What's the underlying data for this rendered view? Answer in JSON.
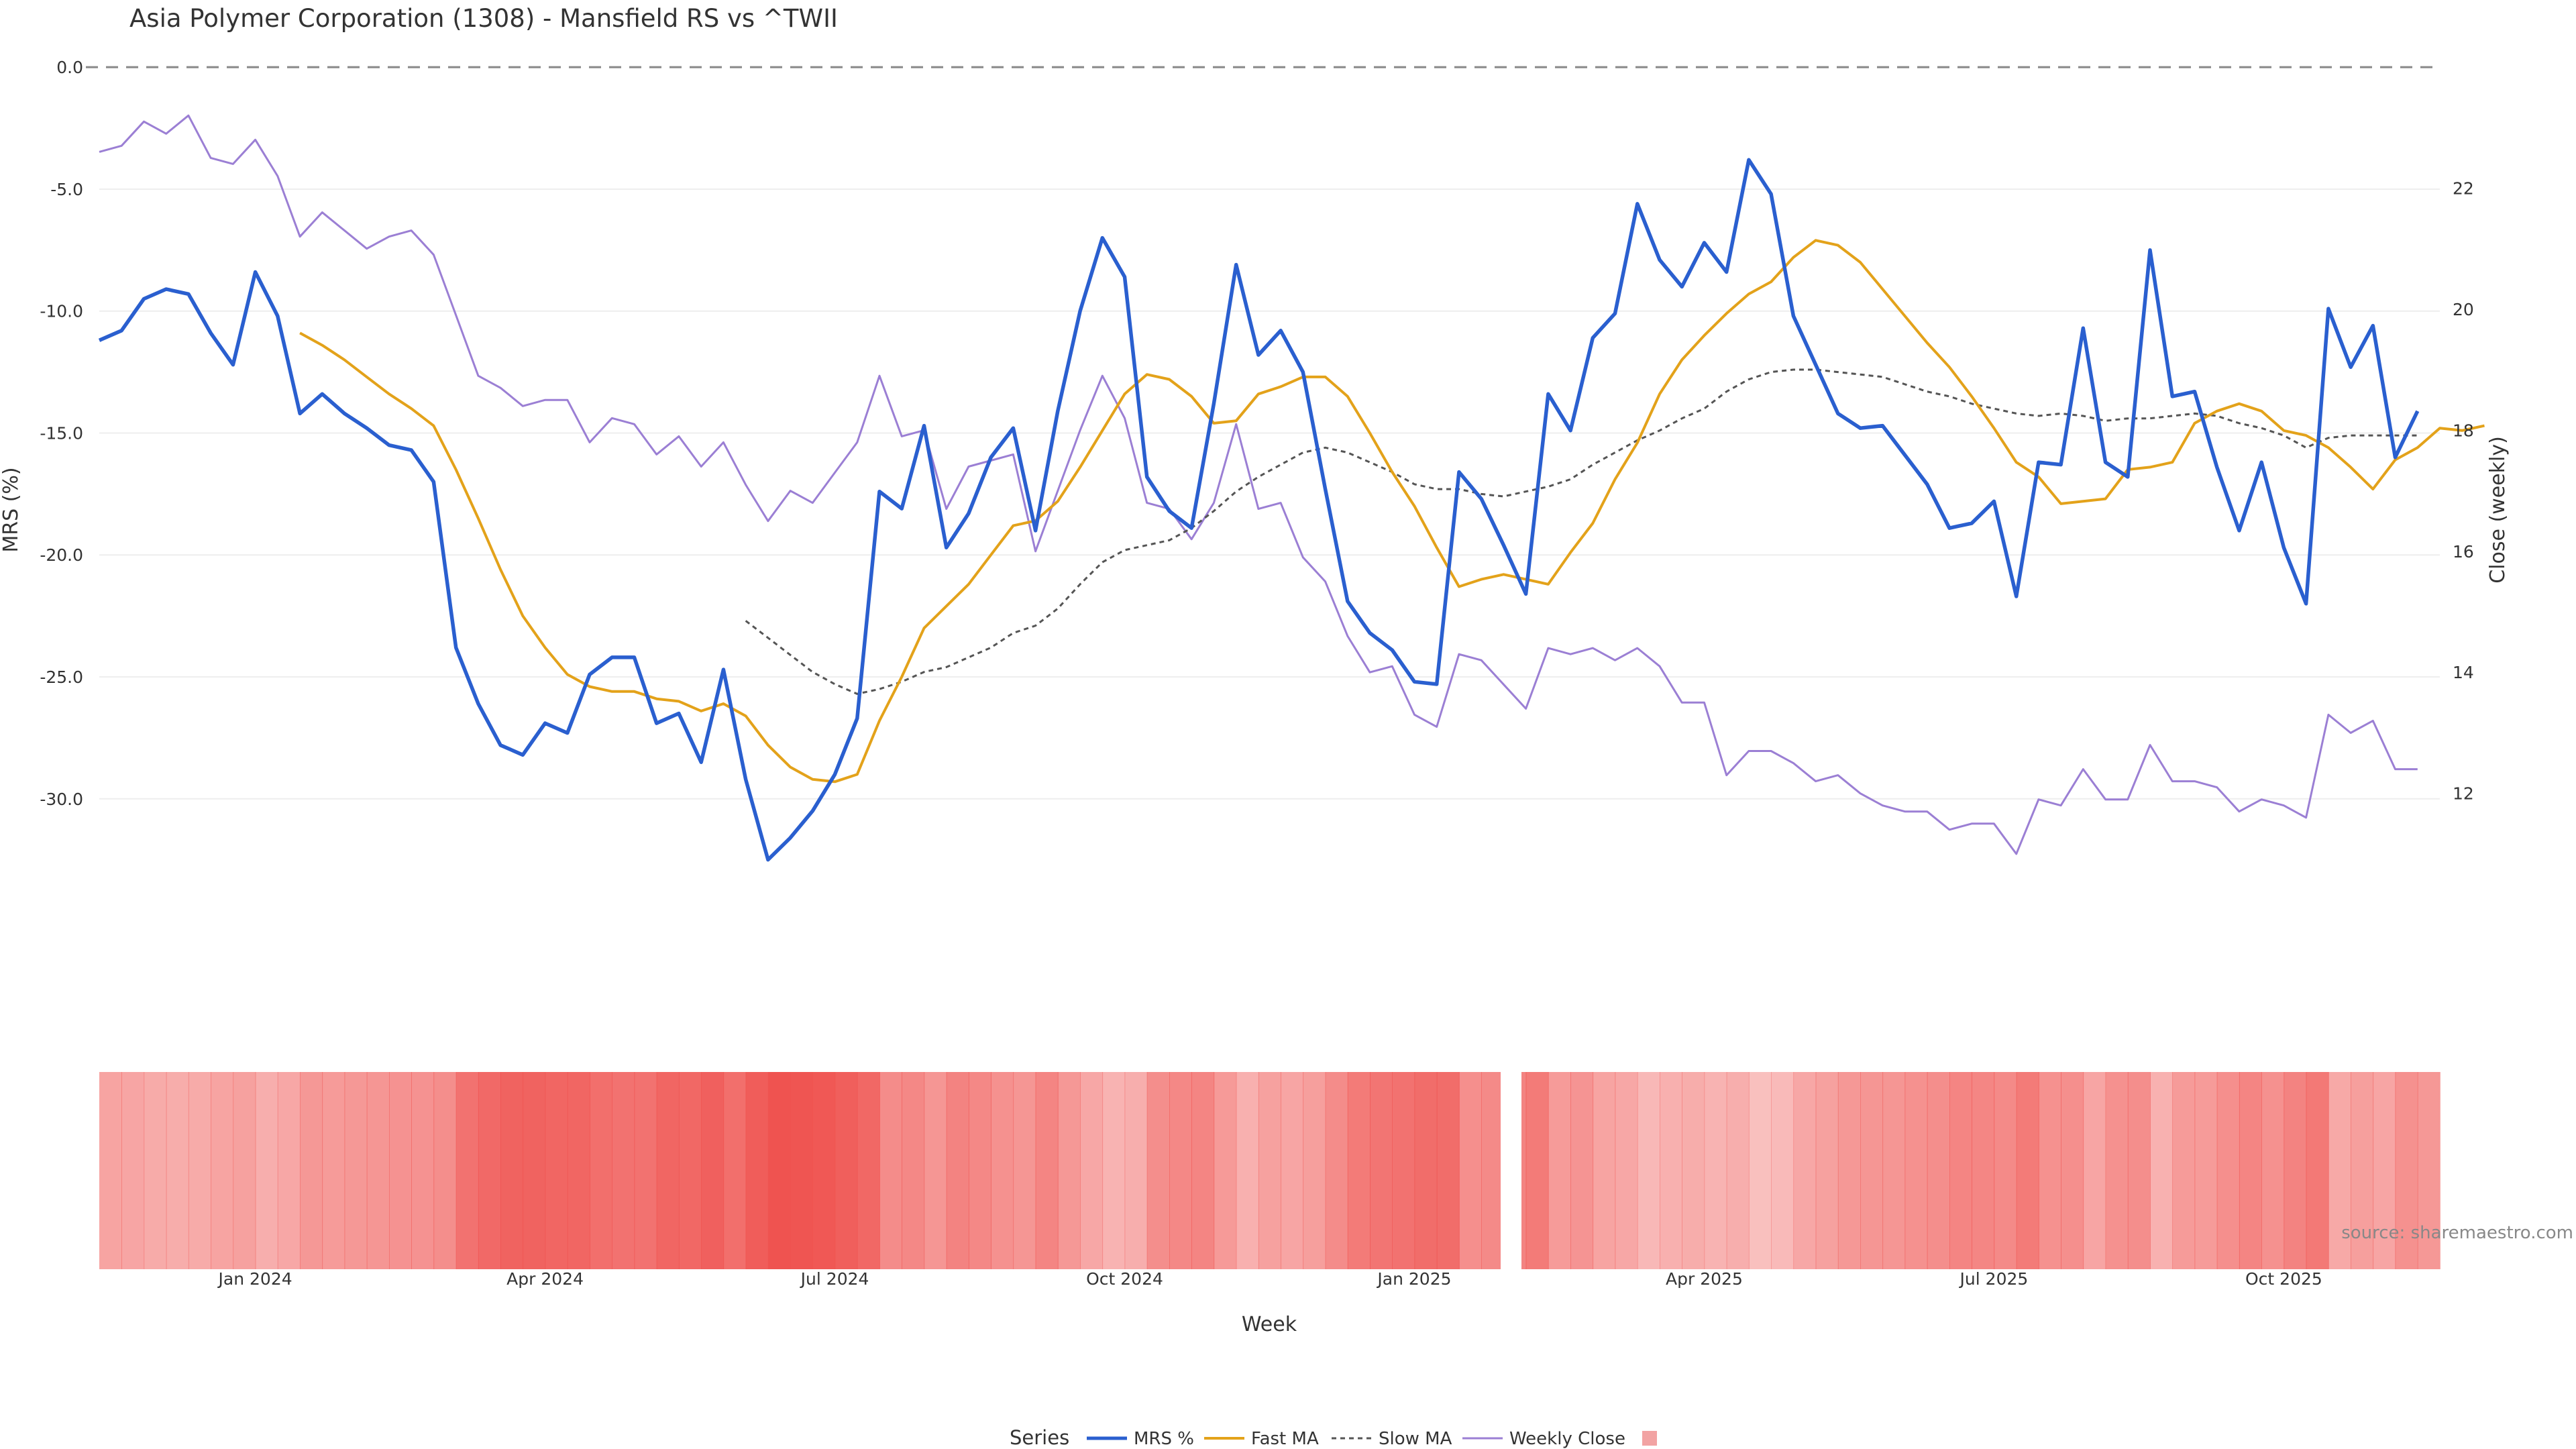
{
  "chart_data": {
    "type": "line",
    "title": "Asia Polymer Corporation (1308) - Mansfield RS vs ^TWII",
    "xlabel": "Week",
    "ylabel_left": "MRS (%)",
    "ylabel_right": "Close (weekly)",
    "ylim_left": [
      -33.5,
      0.5
    ],
    "ylim_right": [
      10.5,
      24.2
    ],
    "yticks_left": [
      "0.0",
      "-5.0",
      "-10.0",
      "-15.0",
      "-20.0",
      "-25.0",
      "-30.0"
    ],
    "yticks_right": [
      "22",
      "20",
      "18",
      "16",
      "14",
      "12"
    ],
    "xticks": [
      "Jan 2024",
      "Apr 2024",
      "Jul 2024",
      "Oct 2024",
      "Jan 2025",
      "Apr 2025",
      "Jul 2025",
      "Oct 2025"
    ],
    "x_range_weeks": [
      0,
      105
    ],
    "xtick_weeks": [
      7,
      20,
      33,
      46,
      59,
      72,
      85,
      98
    ],
    "zero_line": 0,
    "gap_after_week": 62,
    "legend": {
      "title": "Series",
      "items": [
        "MRS %",
        "Fast MA",
        "Slow MA",
        "Weekly Close",
        ""
      ],
      "position": "bottom-center"
    },
    "source": "source: sharemaestro.com",
    "colors": {
      "mrs": "#2a5fcf",
      "fast": "#e3a21a",
      "slow": "#555555",
      "close": "#9b7fd4",
      "heat": "#ef5350",
      "zero": "#888888"
    },
    "series": [
      {
        "name": "MRS %",
        "values": [
          -11.2,
          -10.8,
          -9.5,
          -9.1,
          -9.3,
          -10.9,
          -12.2,
          -8.4,
          -10.2,
          -14.2,
          -13.4,
          -14.2,
          -14.8,
          -15.5,
          -15.7,
          -17.0,
          -23.8,
          -26.1,
          -27.8,
          -28.2,
          -26.9,
          -27.3,
          -24.9,
          -24.2,
          -24.2,
          -26.9,
          -26.5,
          -28.5,
          -24.7,
          -29.2,
          -32.5,
          -31.6,
          -30.5,
          -29.0,
          -26.7,
          -17.4,
          -18.1,
          -14.7,
          -19.7,
          -18.3,
          -16.0,
          -14.8,
          -19.0,
          -14.1,
          -10.0,
          -7.0,
          -8.6,
          -16.8,
          -18.2,
          -18.9,
          -13.8,
          -8.1,
          -11.8,
          -10.8,
          -12.5,
          -17.3,
          -21.9,
          -23.2,
          -23.9,
          -25.2,
          -25.3,
          -16.6,
          -17.7,
          -19.6,
          -21.6,
          -13.4,
          -14.9,
          -11.1,
          -10.1,
          -5.6,
          -7.9,
          -9.0,
          -7.2,
          -8.4,
          -3.8,
          -5.2,
          -10.2,
          -12.2,
          -14.2,
          -14.8,
          -14.7,
          -15.9,
          -17.1,
          -18.9,
          -18.7,
          -17.8,
          -21.7,
          -16.2,
          -16.3,
          -10.7,
          -16.2,
          -16.8,
          -7.5,
          -13.5,
          -13.3,
          -16.4,
          -19.0,
          -16.2,
          -19.7,
          -22.0,
          -9.9,
          -12.3,
          -10.6,
          -16.0,
          -14.1
        ]
      },
      {
        "name": "Fast MA",
        "values": [
          null,
          null,
          null,
          null,
          null,
          null,
          null,
          null,
          null,
          -10.9,
          -11.4,
          -12.0,
          -12.7,
          -13.4,
          -14.0,
          -14.7,
          -16.5,
          -18.5,
          -20.6,
          -22.5,
          -23.8,
          -24.9,
          -25.4,
          -25.6,
          -25.6,
          -25.9,
          -26.0,
          -26.4,
          -26.1,
          -26.6,
          -27.8,
          -28.7,
          -29.2,
          -29.3,
          -29.0,
          -26.8,
          -25.0,
          -23.0,
          -22.1,
          -21.2,
          -20.0,
          -18.8,
          -18.6,
          -17.8,
          -16.4,
          -14.9,
          -13.4,
          -12.6,
          -12.8,
          -13.5,
          -14.6,
          -14.5,
          -13.4,
          -13.1,
          -12.7,
          -12.7,
          -13.5,
          -15.0,
          -16.6,
          -18.0,
          -19.7,
          -21.3,
          -21.0,
          -20.8,
          -21.0,
          -21.2,
          -19.9,
          -18.7,
          -16.9,
          -15.4,
          -13.4,
          -12.0,
          -11.0,
          -10.1,
          -9.3,
          -8.8,
          -7.8,
          -7.1,
          -7.3,
          -8.0,
          -9.1,
          -10.2,
          -11.3,
          -12.3,
          -13.5,
          -14.8,
          -16.2,
          -16.8,
          -17.9,
          -17.8,
          -17.7,
          -16.5,
          -16.4,
          -16.2,
          -14.6,
          -14.1,
          -13.8,
          -14.1,
          -14.9,
          -15.1,
          -15.6,
          -16.4,
          -17.3,
          -16.1,
          -15.6,
          -14.8,
          -14.9,
          -14.7
        ]
      },
      {
        "name": "Slow MA",
        "values": [
          null,
          null,
          null,
          null,
          null,
          null,
          null,
          null,
          null,
          null,
          null,
          null,
          null,
          null,
          null,
          null,
          null,
          null,
          null,
          null,
          null,
          null,
          null,
          null,
          null,
          null,
          null,
          null,
          null,
          -22.7,
          -23.4,
          -24.1,
          -24.8,
          -25.3,
          -25.7,
          -25.5,
          -25.2,
          -24.8,
          -24.6,
          -24.2,
          -23.8,
          -23.2,
          -22.9,
          -22.2,
          -21.2,
          -20.3,
          -19.8,
          -19.6,
          -19.4,
          -18.9,
          -18.2,
          -17.4,
          -16.8,
          -16.3,
          -15.8,
          -15.6,
          -15.8,
          -16.2,
          -16.6,
          -17.1,
          -17.3,
          -17.3,
          -17.5,
          -17.6,
          -17.4,
          -17.2,
          -16.9,
          -16.3,
          -15.8,
          -15.3,
          -14.9,
          -14.4,
          -14.0,
          -13.3,
          -12.8,
          -12.5,
          -12.4,
          -12.4,
          -12.5,
          -12.6,
          -12.7,
          -13.0,
          -13.3,
          -13.5,
          -13.8,
          -14.0,
          -14.2,
          -14.3,
          -14.2,
          -14.3,
          -14.5,
          -14.4,
          -14.4,
          -14.3,
          -14.2,
          -14.3,
          -14.6,
          -14.8,
          -15.1,
          -15.6,
          -15.2,
          -15.1,
          -15.1,
          -15.1,
          -15.1
        ]
      },
      {
        "name": "Weekly Close",
        "values": [
          22.6,
          22.7,
          23.1,
          22.9,
          23.2,
          22.5,
          22.4,
          22.8,
          22.2,
          21.2,
          21.6,
          21.3,
          21.0,
          21.2,
          21.3,
          20.9,
          19.9,
          18.9,
          18.7,
          18.4,
          18.5,
          18.5,
          17.8,
          18.2,
          18.1,
          17.6,
          17.9,
          17.4,
          17.8,
          17.1,
          16.5,
          17.0,
          16.8,
          17.3,
          17.8,
          18.9,
          17.9,
          18.0,
          16.7,
          17.4,
          17.5,
          17.6,
          16.0,
          17.0,
          18.0,
          18.9,
          18.2,
          16.8,
          16.7,
          16.2,
          16.8,
          18.1,
          16.7,
          16.8,
          15.9,
          15.5,
          14.6,
          14.0,
          14.1,
          13.3,
          13.1,
          14.3,
          14.2,
          13.8,
          13.4,
          14.4,
          14.3,
          14.4,
          14.2,
          14.4,
          14.1,
          13.5,
          13.5,
          12.3,
          12.7,
          12.7,
          12.5,
          12.2,
          12.3,
          12.0,
          11.8,
          11.7,
          11.7,
          11.4,
          11.5,
          11.5,
          11.0,
          11.9,
          11.8,
          12.4,
          11.9,
          11.9,
          12.8,
          12.2,
          12.2,
          12.1,
          11.7,
          11.9,
          11.8,
          11.6,
          13.3,
          13.0,
          13.2,
          12.4,
          12.4
        ]
      },
      {
        "name": "MRS heat",
        "values": [
          -11.2,
          -10.8,
          -9.5,
          -9.1,
          -9.3,
          -10.9,
          -12.2,
          -8.4,
          -10.2,
          -14.2,
          -13.4,
          -14.2,
          -14.8,
          -15.5,
          -15.7,
          -17.0,
          -23.8,
          -26.1,
          -27.8,
          -28.2,
          -26.9,
          -27.3,
          -24.9,
          -24.2,
          -24.2,
          -26.9,
          -26.5,
          -28.5,
          -24.7,
          -29.2,
          -32.5,
          -31.6,
          -30.5,
          -29.0,
          -26.7,
          -17.4,
          -18.1,
          -14.7,
          -19.7,
          -18.3,
          -16.0,
          -14.8,
          -19.0,
          -14.1,
          -10.0,
          -7.0,
          -8.6,
          -16.8,
          -18.2,
          -18.9,
          -13.8,
          -8.1,
          -11.8,
          -10.8,
          -12.5,
          -17.3,
          -21.9,
          -23.2,
          -23.9,
          -25.2,
          -25.3,
          -16.6,
          -17.7,
          -19.6,
          -21.6,
          -13.4,
          -14.9,
          -11.1,
          -10.1,
          -5.6,
          -7.9,
          -9.0,
          -7.2,
          -8.4,
          -3.8,
          -5.2,
          -10.2,
          -12.2,
          -14.2,
          -14.8,
          -14.7,
          -15.9,
          -17.1,
          -18.9,
          -18.7,
          -17.8,
          -21.7,
          -16.2,
          -16.3,
          -10.7,
          -16.2,
          -16.8,
          -7.5,
          -13.5,
          -13.3,
          -16.4,
          -19.0,
          -16.2,
          -19.7,
          -22.0,
          -9.9,
          -12.3,
          -10.6,
          -16.0,
          -14.1
        ]
      }
    ]
  }
}
